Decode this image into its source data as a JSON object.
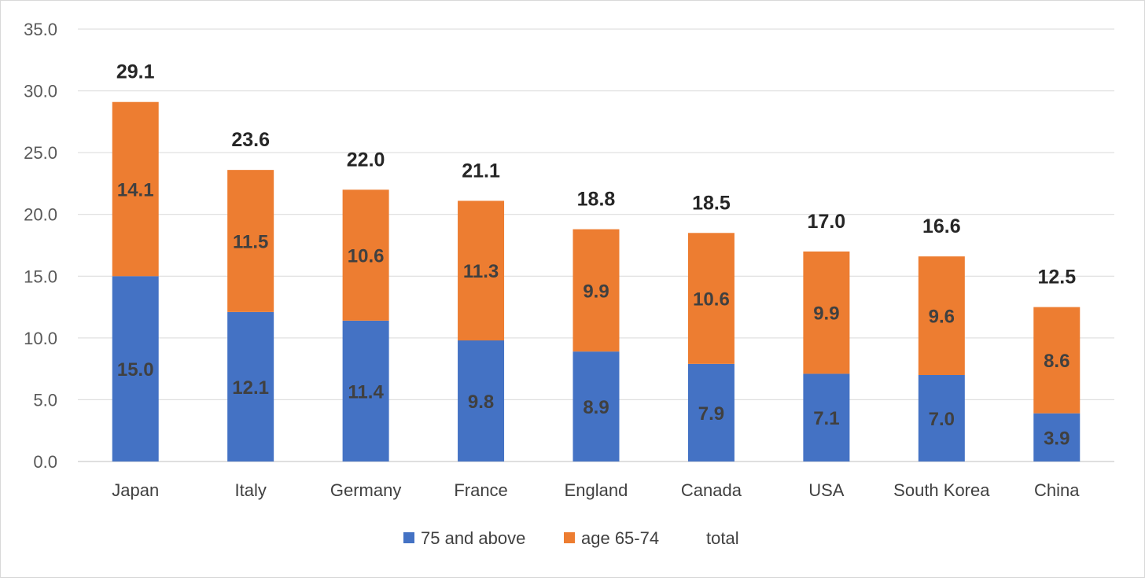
{
  "chart_data": {
    "type": "bar",
    "stacked": true,
    "title": "",
    "xlabel": "",
    "ylabel": "",
    "categories": [
      "Japan",
      "Italy",
      "Germany",
      "France",
      "England",
      "Canada",
      "USA",
      "South Korea",
      "China"
    ],
    "series": [
      {
        "name": "75 and above",
        "color": "#4472c4",
        "values": [
          15.0,
          12.1,
          11.4,
          9.8,
          8.9,
          7.9,
          7.1,
          7.0,
          3.9
        ]
      },
      {
        "name": "age 65-74",
        "color": "#ed7d31",
        "values": [
          14.1,
          11.5,
          10.6,
          11.3,
          9.9,
          10.6,
          9.9,
          9.6,
          8.6
        ]
      }
    ],
    "totals": {
      "name": "total",
      "values": [
        29.1,
        23.6,
        22.0,
        21.1,
        18.8,
        18.5,
        17.0,
        16.6,
        12.5
      ]
    },
    "ylim": [
      0,
      35
    ],
    "yticks": [
      0.0,
      5.0,
      10.0,
      15.0,
      20.0,
      25.0,
      30.0,
      35.0
    ],
    "grid": true,
    "legend_position": "bottom"
  }
}
